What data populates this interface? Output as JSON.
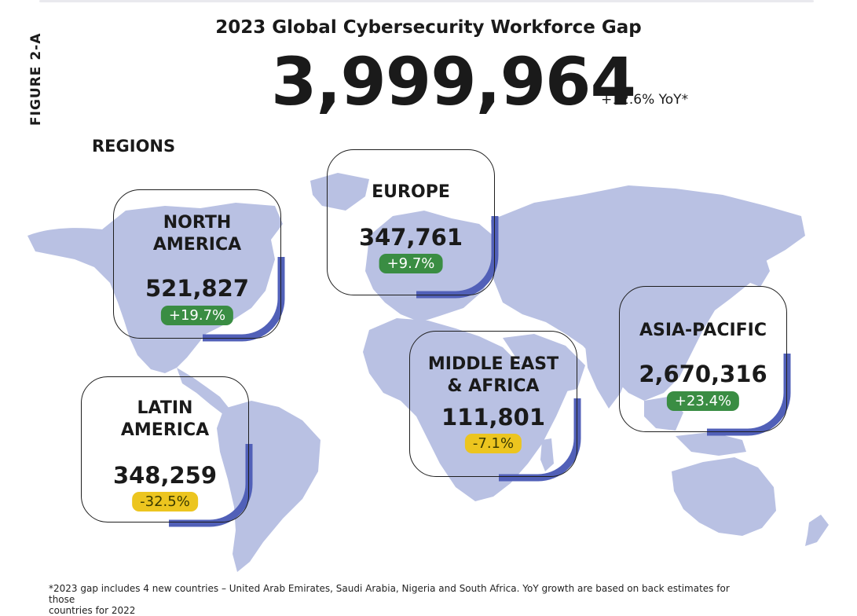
{
  "figure_label": "FIGURE 2-A",
  "title": "2023 Global Cybersecurity Workforce Gap",
  "headline": {
    "value": "3,999,964",
    "yoy": "+12.6% YoY*"
  },
  "regions_title": "REGIONS",
  "colors": {
    "map": "#b9c1e3",
    "accent": "#5160b8",
    "positive": "#3a8d43",
    "negative": "#ecc51f"
  },
  "regions": {
    "north_america": {
      "name_line1": "NORTH",
      "name_line2": "AMERICA",
      "value": "521,827",
      "change": "+19.7%",
      "trend": "up"
    },
    "europe": {
      "name_line1": "EUROPE",
      "value": "347,761",
      "change": "+9.7%",
      "trend": "up"
    },
    "latin_america": {
      "name_line1": "LATIN",
      "name_line2": "AMERICA",
      "value": "348,259",
      "change": "-32.5%",
      "trend": "down"
    },
    "middle_east_africa": {
      "name_line1": "MIDDLE EAST",
      "name_line2": "& AFRICA",
      "value": "111,801",
      "change": "-7.1%",
      "trend": "down"
    },
    "asia_pacific": {
      "name_line1": "ASIA-PACIFIC",
      "value": "2,670,316",
      "change": "+23.4%",
      "trend": "up"
    }
  },
  "footnote": {
    "line1": "*2023 gap includes 4 new countries – United Arab Emirates, Saudi Arabia, Nigeria and South Africa. YoY growth are based on back estimates for those",
    "line2": "countries for 2022"
  }
}
